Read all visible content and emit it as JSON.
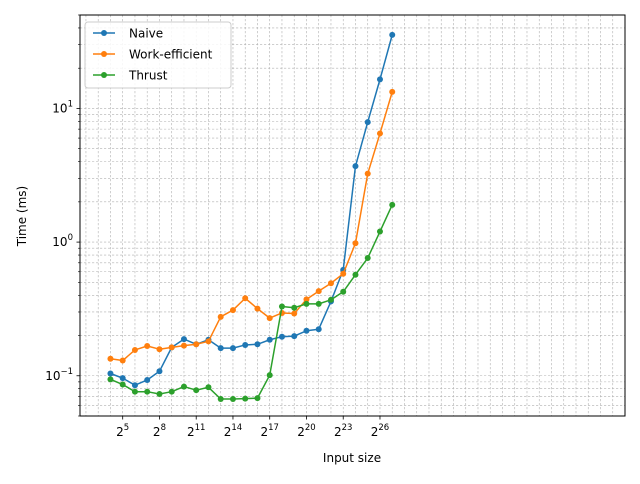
{
  "chart_data": {
    "type": "line",
    "title": "",
    "xlabel": "Input size",
    "ylabel": "Time (ms)",
    "x_scale": "log2",
    "y_scale": "log10",
    "xlim": [
      2.857,
      70368744177664
    ],
    "ylim": [
      0.05,
      50
    ],
    "grid": "on (major and minor, dashed)",
    "legend_position": "upper-left",
    "x_ticks": [
      {
        "base": "2",
        "exp": "5",
        "value": 32
      },
      {
        "base": "2",
        "exp": "8",
        "value": 256
      },
      {
        "base": "2",
        "exp": "11",
        "value": 2048
      },
      {
        "base": "2",
        "exp": "14",
        "value": 16384
      },
      {
        "base": "2",
        "exp": "17",
        "value": 131072
      },
      {
        "base": "2",
        "exp": "20",
        "value": 1048576
      },
      {
        "base": "2",
        "exp": "23",
        "value": 8388608
      },
      {
        "base": "2",
        "exp": "26",
        "value": 67108864
      }
    ],
    "y_ticks": [
      {
        "base": "10",
        "exp": "−1",
        "value": 0.1
      },
      {
        "base": "10",
        "exp": "0",
        "value": 1
      },
      {
        "base": "10",
        "exp": "1",
        "value": 10
      }
    ],
    "x": [
      16,
      32,
      64,
      128,
      256,
      512,
      1024,
      2048,
      4096,
      8192,
      16384,
      32768,
      65536,
      131072,
      262144,
      524288,
      1048576,
      2097152,
      4194304,
      8388608,
      16777216,
      33554432,
      67108864,
      134217728
    ],
    "series": [
      {
        "name": "Naive",
        "color": "#1f77b4",
        "values": [
          0.104,
          0.096,
          0.085,
          0.093,
          0.108,
          0.163,
          0.188,
          0.172,
          0.186,
          0.161,
          0.161,
          0.17,
          0.172,
          0.186,
          0.196,
          0.198,
          0.217,
          0.223,
          0.36,
          0.62,
          3.7,
          7.9,
          16.5,
          35.5
        ]
      },
      {
        "name": "Work-efficient",
        "color": "#ff7f0e",
        "values": [
          0.134,
          0.13,
          0.156,
          0.167,
          0.158,
          0.163,
          0.168,
          0.172,
          0.181,
          0.276,
          0.31,
          0.38,
          0.318,
          0.27,
          0.295,
          0.292,
          0.373,
          0.43,
          0.492,
          0.58,
          0.98,
          3.25,
          6.5,
          13.3
        ]
      },
      {
        "name": "Thrust",
        "color": "#2ca02c",
        "values": [
          0.094,
          0.086,
          0.076,
          0.076,
          0.073,
          0.076,
          0.083,
          0.078,
          0.082,
          0.067,
          0.067,
          0.0675,
          0.068,
          0.101,
          0.33,
          0.323,
          0.345,
          0.345,
          0.37,
          0.425,
          0.57,
          0.76,
          1.2,
          1.9
        ]
      }
    ]
  }
}
